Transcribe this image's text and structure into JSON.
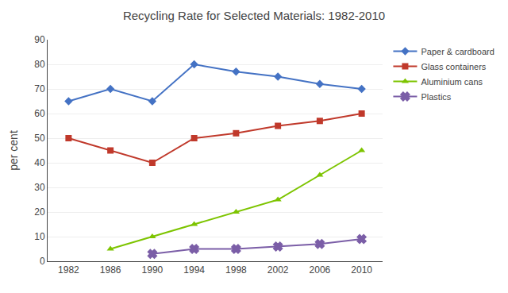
{
  "chart_data": {
    "type": "line",
    "title": "Recycling Rate for Selected Materials: 1982-2010",
    "ylabel": "per cent",
    "x": [
      1982,
      1986,
      1990,
      1994,
      1998,
      2002,
      2006,
      2010
    ],
    "series": [
      {
        "name": "Paper & cardboard",
        "color": "#4472C4",
        "marker": "diamond",
        "values": [
          65,
          70,
          65,
          80,
          77,
          75,
          72,
          70
        ]
      },
      {
        "name": "Glass containers",
        "color": "#C0392B",
        "marker": "square",
        "values": [
          50,
          45,
          40,
          50,
          52,
          55,
          57,
          60
        ]
      },
      {
        "name": "Aluminium cans",
        "color": "#7DC400",
        "marker": "triangle-up",
        "values": [
          null,
          5,
          10,
          15,
          20,
          25,
          35,
          45
        ]
      },
      {
        "name": "Plastics",
        "color": "#7B5EA7",
        "marker": "x",
        "values": [
          null,
          null,
          3,
          5,
          5,
          6,
          7,
          9
        ]
      }
    ],
    "xlim": [
      1980,
      2012
    ],
    "xticks": [
      1982,
      1986,
      1990,
      1994,
      1998,
      2002,
      2006,
      2010
    ],
    "ylim": [
      0,
      90
    ],
    "yticks": [
      0,
      10,
      20,
      30,
      40,
      50,
      60,
      70,
      80,
      90
    ],
    "grid": "y",
    "legend": "right"
  }
}
